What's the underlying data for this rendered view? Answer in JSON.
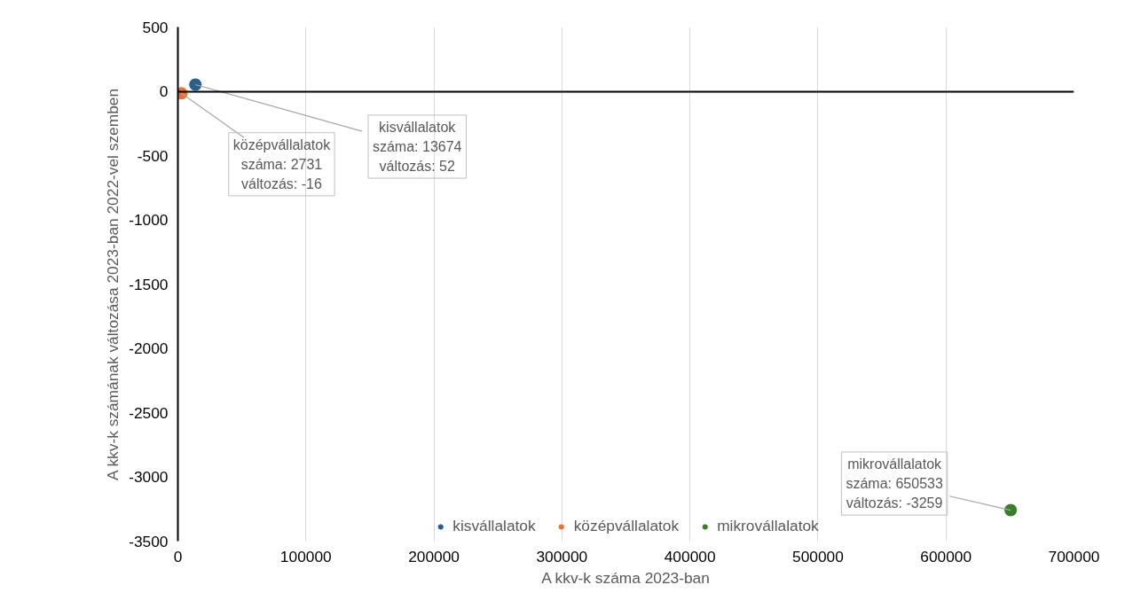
{
  "chart_data": {
    "type": "scatter",
    "xlabel": "A kkv-k száma 2023-ban",
    "ylabel": "A kkv-k számának változása 2023-ban 2022-vel szemben",
    "series": [
      {
        "name": "kisvállalatok",
        "color": "#2b5f8a",
        "x": [
          13674
        ],
        "values": [
          52
        ]
      },
      {
        "name": "középvállalatok",
        "color": "#e97132",
        "x": [
          2731
        ],
        "values": [
          -16
        ]
      },
      {
        "name": "mikrovállalatok",
        "color": "#3a7d2a",
        "x": [
          650533
        ],
        "values": [
          -3259
        ]
      }
    ],
    "annotations": [
      {
        "text": "kisvállalatok\nszáma: 13674\nváltozás: 52",
        "x": 13674,
        "y": 52
      },
      {
        "text": "középvállalatok\nszáma: 2731\nváltozás: -16",
        "x": 2731,
        "y": -16
      },
      {
        "text": "mikrovállalatok\nszáma: 650533\nváltozás: -3259",
        "x": 650533,
        "y": -3259
      }
    ],
    "xlim": [
      0,
      700000
    ],
    "xticks": [
      0,
      100000,
      200000,
      300000,
      400000,
      500000,
      600000,
      700000
    ],
    "ylim": [
      -3500,
      500
    ],
    "yticks": [
      -3500,
      -3000,
      -2500,
      -2000,
      -1500,
      -1000,
      -500,
      0,
      500
    ],
    "grid": "x",
    "legend": "bottom",
    "marker": "circle"
  }
}
